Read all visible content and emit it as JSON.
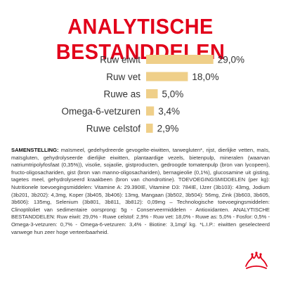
{
  "title": "ANALYTISCHE BESTANDDELEN",
  "colors": {
    "title": "#e2001a",
    "bar": "#efcf89",
    "text": "#333333",
    "logo": "#e2001a"
  },
  "chart_data": {
    "type": "bar",
    "orientation": "horizontal",
    "categories": [
      "Ruw eiwit",
      "Ruw vet",
      "Ruwe as",
      "Omega-6-vetzuren",
      "Ruwe celstof"
    ],
    "values": [
      29.0,
      18.0,
      5.0,
      3.4,
      2.9
    ],
    "value_labels": [
      "29,0%",
      "18,0%",
      "5,0%",
      "3,4%",
      "2,9%"
    ],
    "xlim": [
      0,
      30
    ],
    "grid": false,
    "title": "",
    "xlabel": "",
    "ylabel": ""
  },
  "composition": {
    "heading": "SAMENSTELLING:",
    "text": " maïsmeel, gedehydreerde gevogelte-eiwitten, tarwegluten*, rijst, dierlijke vetten, maïs, maïsgluten, gehydrolyseerde dierlijke eiwitten, plantaardige vezels, bietenpulp, mineralen (waarvan natriumtripolyfosfaat (0,35%)), visolie, sojaolie, gistproducten, gedroogde tomatenpulp (bron van lycopeen), fructo-oligosachariden, gist (bron van manno-oligosachariden), bernagieolie (0,1%), glucosamine uit gisting, tagetes meel, gehydrolyseerd kraakbeen (bron van chondroïtine). TOEVOEGINGSMIDDELEN (per kg): Nutritionele toevoegingsmiddelen: Vitamine A: 29.390IE, Vitamine D3: 784IE, IJzer (3b103): 43mg, Jodium (3b201, 3b202): 4,3mg, Koper (3b405, 3b406): 13mg, Mangaan (3b502, 3b504): 56mg, Zink (3b603, 3b605, 3b606): 135mg, Selenium (3b801, 3b811, 3b812): 0,09mg – Technologische toevoegingsmiddelen: Clinoptiloliet van sedimentaire oorsprong: 5g - Conserveermiddelen - Antioxidanten. ANALYTISCHE BESTANDDELEN: Ruw eiwit: 29,0% - Ruwe celstof: 2,9% - Ruw vet: 18,0% - Ruwe as: 5,0% - Fosfor: 0,5% - Omega-3-vetzuren: 0,7% - Omega-6-vetzuren: 3,4% - Biotine: 3,1mg/ kg. *L.I.P.: eiwitten geselecteerd vanwege hun zeer hoge verteerbaarheid."
  },
  "logo": {
    "icon": "crown-icon"
  }
}
